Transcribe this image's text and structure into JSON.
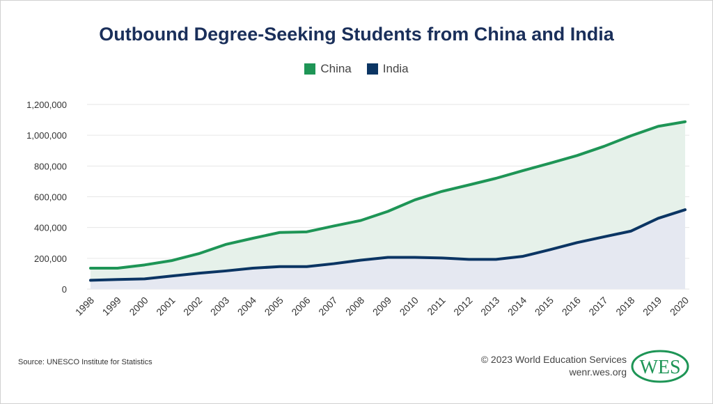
{
  "chart_data": {
    "type": "area",
    "title": "Outbound Degree-Seeking Students from China and India",
    "xlabel": "",
    "ylabel": "",
    "ylim": [
      0,
      1200000
    ],
    "yticks": [
      0,
      200000,
      400000,
      600000,
      800000,
      1000000,
      1200000
    ],
    "ytick_labels": [
      "0",
      "200,000",
      "400,000",
      "600,000",
      "800,000",
      "1,000,000",
      "1,200,000"
    ],
    "categories": [
      "1998",
      "1999",
      "2000",
      "2001",
      "2002",
      "2003",
      "2004",
      "2005",
      "2006",
      "2007",
      "2008",
      "2009",
      "2010",
      "2011",
      "2012",
      "2013",
      "2014",
      "2015",
      "2016",
      "2017",
      "2018",
      "2019",
      "2020"
    ],
    "grid": true,
    "legend_position": "top-center",
    "series": [
      {
        "name": "China",
        "color": "#1e9556",
        "fill": "#e6f1ea",
        "values": [
          136000,
          136000,
          157000,
          185000,
          230000,
          290000,
          330000,
          368000,
          372000,
          410000,
          446000,
          505000,
          580000,
          635000,
          677000,
          720000,
          770000,
          818000,
          868000,
          928000,
          997000,
          1058000,
          1088000
        ]
      },
      {
        "name": "India",
        "color": "#0b3563",
        "fill": "#e5e8f1",
        "values": [
          57000,
          62000,
          66000,
          85000,
          103000,
          118000,
          136000,
          146000,
          146000,
          165000,
          188000,
          206000,
          206000,
          202000,
          193000,
          193000,
          213000,
          256000,
          302000,
          340000,
          377000,
          460000,
          516000
        ]
      }
    ]
  },
  "footer": {
    "source": "Source: UNESCO Institute for Statistics",
    "copyright": "© 2023 World Education Services",
    "website": "wenr.wes.org",
    "logo_text": "WES"
  }
}
